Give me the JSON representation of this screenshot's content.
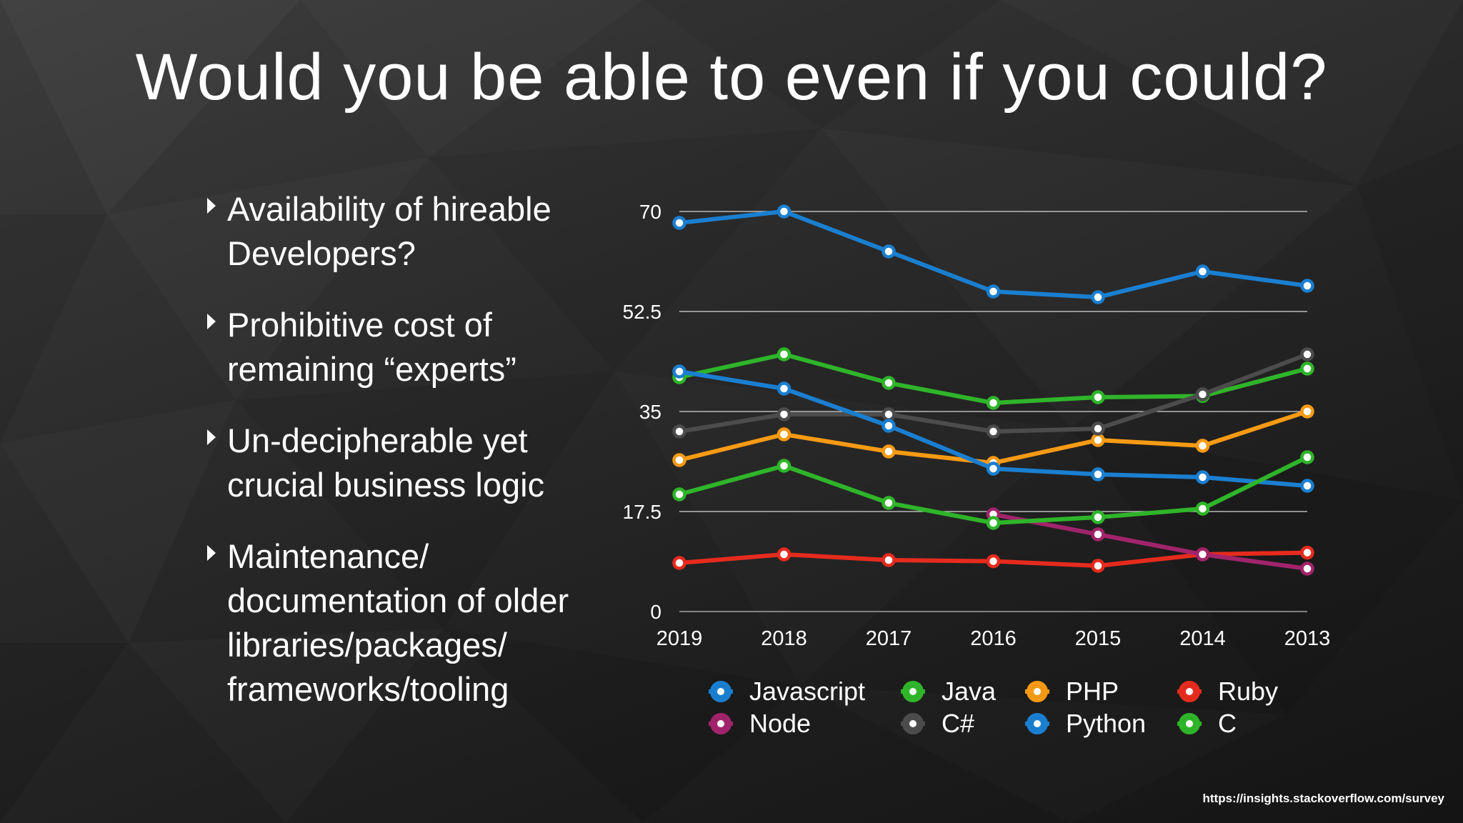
{
  "slide": {
    "title": "Would you be able to even if you could?",
    "bullets": [
      [
        "Availability of hireable",
        "Developers?"
      ],
      [
        "Prohibitive cost of",
        "remaining “experts”"
      ],
      [
        "Un-decipherable yet",
        "crucial business logic"
      ],
      [
        "Maintenance/",
        "documentation of older",
        "libraries/packages/",
        "frameworks/tooling"
      ]
    ],
    "source": "https://insights.stackoverflow.com/survey"
  },
  "chart_data": {
    "type": "line",
    "categories": [
      "2019",
      "2018",
      "2017",
      "2016",
      "2015",
      "2014",
      "2013"
    ],
    "ylim": [
      0,
      70
    ],
    "yticks": [
      "0",
      "17.5",
      "35",
      "52.5",
      "70"
    ],
    "grid": true,
    "legend_position": "bottom",
    "series": [
      {
        "name": "Javascript",
        "color": "#1a7fd0",
        "values": [
          68,
          70,
          63,
          56,
          55,
          59.5,
          57
        ]
      },
      {
        "name": "Java",
        "color": "#2fb52a",
        "values": [
          41,
          45,
          40,
          36.5,
          37.5,
          37.7,
          42.5
        ]
      },
      {
        "name": "PHP",
        "color": "#f79a14",
        "values": [
          26.5,
          31,
          28,
          26,
          30,
          29,
          35
        ]
      },
      {
        "name": "Ruby",
        "color": "#e62b1e",
        "values": [
          8.5,
          10,
          9,
          8.8,
          8,
          10,
          10.3
        ]
      },
      {
        "name": "Node",
        "color": "#a1246b",
        "values": [
          null,
          null,
          null,
          17,
          13.5,
          10,
          7.5
        ]
      },
      {
        "name": "C#",
        "color": "#4c4c4c",
        "values": [
          31.5,
          34.5,
          34.5,
          31.5,
          32,
          38,
          45
        ]
      },
      {
        "name": "Python",
        "color": "#1a7fd0",
        "values": [
          42,
          39,
          32.5,
          25,
          24,
          23.5,
          22
        ]
      },
      {
        "name": "C",
        "color": "#2fb52a",
        "values": [
          20.5,
          25.5,
          19,
          15.5,
          16.5,
          18,
          27
        ]
      }
    ]
  }
}
